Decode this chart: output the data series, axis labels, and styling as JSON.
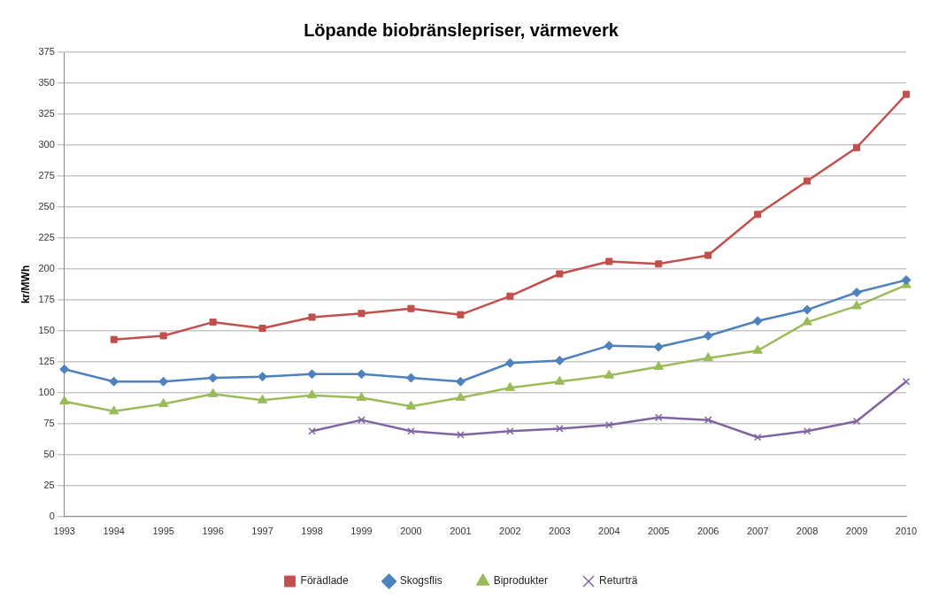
{
  "chart_data": {
    "type": "line",
    "title": "Löpande biobränslepriser, värmeverk",
    "ylabel": "kr/MWh",
    "categories": [
      "1993",
      "1994",
      "1995",
      "1996",
      "1997",
      "1998",
      "1999",
      "2000",
      "2001",
      "2002",
      "2003",
      "2004",
      "2005",
      "2006",
      "2007",
      "2008",
      "2009",
      "2010"
    ],
    "series": [
      {
        "name": "Förädlade",
        "color": "#c0504d",
        "marker": "square",
        "values": [
          null,
          143,
          146,
          157,
          152,
          161,
          164,
          168,
          163,
          178,
          196,
          206,
          204,
          211,
          244,
          271,
          298,
          341
        ]
      },
      {
        "name": "Skogsflis",
        "color": "#4f81bd",
        "marker": "diamond",
        "values": [
          119,
          109,
          109,
          112,
          113,
          115,
          115,
          112,
          109,
          124,
          126,
          138,
          137,
          146,
          158,
          167,
          181,
          191
        ]
      },
      {
        "name": "Biprodukter",
        "color": "#9bbb59",
        "marker": "triangle",
        "values": [
          93,
          85,
          91,
          99,
          94,
          98,
          96,
          89,
          96,
          104,
          109,
          114,
          121,
          128,
          134,
          157,
          170,
          187
        ]
      },
      {
        "name": "Returträ",
        "color": "#8064a2",
        "marker": "cross",
        "values": [
          null,
          null,
          null,
          null,
          null,
          69,
          78,
          69,
          66,
          69,
          71,
          74,
          80,
          78,
          64,
          69,
          77,
          109
        ]
      }
    ],
    "ylim": [
      0,
      375
    ],
    "yticks": [
      0,
      25,
      50,
      75,
      100,
      125,
      150,
      175,
      200,
      225,
      250,
      275,
      300,
      325,
      350,
      375
    ],
    "grid": "y",
    "legend": "bottom"
  }
}
